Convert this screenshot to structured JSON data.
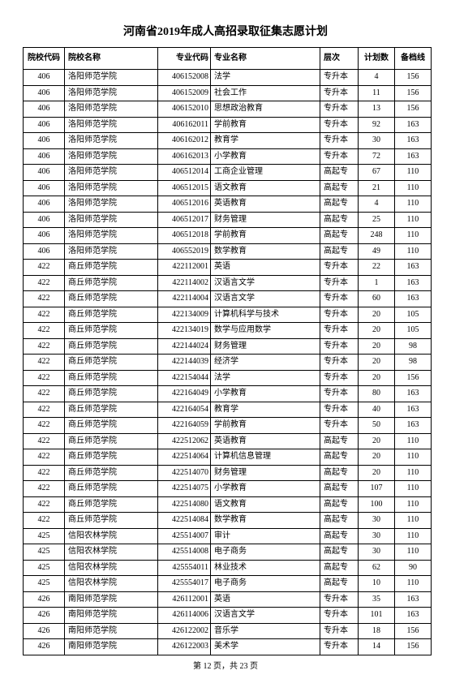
{
  "title": "河南省2019年成人高招录取征集志愿计划",
  "columns": [
    "院校代码",
    "院校名称",
    "专业代码",
    "专业名称",
    "层次",
    "计划数",
    "备档线"
  ],
  "rows": [
    [
      "406",
      "洛阳师范学院",
      "406152008",
      "法学",
      "专升本",
      "4",
      "156"
    ],
    [
      "406",
      "洛阳师范学院",
      "406152009",
      "社会工作",
      "专升本",
      "11",
      "156"
    ],
    [
      "406",
      "洛阳师范学院",
      "406152010",
      "思想政治教育",
      "专升本",
      "13",
      "156"
    ],
    [
      "406",
      "洛阳师范学院",
      "406162011",
      "学前教育",
      "专升本",
      "92",
      "163"
    ],
    [
      "406",
      "洛阳师范学院",
      "406162012",
      "教育学",
      "专升本",
      "30",
      "163"
    ],
    [
      "406",
      "洛阳师范学院",
      "406162013",
      "小学教育",
      "专升本",
      "72",
      "163"
    ],
    [
      "406",
      "洛阳师范学院",
      "406512014",
      "工商企业管理",
      "高起专",
      "67",
      "110"
    ],
    [
      "406",
      "洛阳师范学院",
      "406512015",
      "语文教育",
      "高起专",
      "21",
      "110"
    ],
    [
      "406",
      "洛阳师范学院",
      "406512016",
      "英语教育",
      "高起专",
      "4",
      "110"
    ],
    [
      "406",
      "洛阳师范学院",
      "406512017",
      "财务管理",
      "高起专",
      "25",
      "110"
    ],
    [
      "406",
      "洛阳师范学院",
      "406512018",
      "学前教育",
      "高起专",
      "248",
      "110"
    ],
    [
      "406",
      "洛阳师范学院",
      "406552019",
      "数学教育",
      "高起专",
      "49",
      "110"
    ],
    [
      "422",
      "商丘师范学院",
      "422112001",
      "英语",
      "专升本",
      "22",
      "163"
    ],
    [
      "422",
      "商丘师范学院",
      "422114002",
      "汉语言文学",
      "专升本",
      "1",
      "163"
    ],
    [
      "422",
      "商丘师范学院",
      "422114004",
      "汉语言文学",
      "专升本",
      "60",
      "163"
    ],
    [
      "422",
      "商丘师范学院",
      "422134009",
      "计算机科学与技术",
      "专升本",
      "20",
      "105"
    ],
    [
      "422",
      "商丘师范学院",
      "422134019",
      "数学与应用数学",
      "专升本",
      "20",
      "105"
    ],
    [
      "422",
      "商丘师范学院",
      "422144024",
      "财务管理",
      "专升本",
      "20",
      "98"
    ],
    [
      "422",
      "商丘师范学院",
      "422144039",
      "经济学",
      "专升本",
      "20",
      "98"
    ],
    [
      "422",
      "商丘师范学院",
      "422154044",
      "法学",
      "专升本",
      "20",
      "156"
    ],
    [
      "422",
      "商丘师范学院",
      "422164049",
      "小学教育",
      "专升本",
      "80",
      "163"
    ],
    [
      "422",
      "商丘师范学院",
      "422164054",
      "教育学",
      "专升本",
      "40",
      "163"
    ],
    [
      "422",
      "商丘师范学院",
      "422164059",
      "学前教育",
      "专升本",
      "50",
      "163"
    ],
    [
      "422",
      "商丘师范学院",
      "422512062",
      "英语教育",
      "高起专",
      "20",
      "110"
    ],
    [
      "422",
      "商丘师范学院",
      "422514064",
      "计算机信息管理",
      "高起专",
      "20",
      "110"
    ],
    [
      "422",
      "商丘师范学院",
      "422514070",
      "财务管理",
      "高起专",
      "20",
      "110"
    ],
    [
      "422",
      "商丘师范学院",
      "422514075",
      "小学教育",
      "高起专",
      "107",
      "110"
    ],
    [
      "422",
      "商丘师范学院",
      "422514080",
      "语文教育",
      "高起专",
      "100",
      "110"
    ],
    [
      "422",
      "商丘师范学院",
      "422514084",
      "数学教育",
      "高起专",
      "30",
      "110"
    ],
    [
      "425",
      "信阳农林学院",
      "425514007",
      "审计",
      "高起专",
      "30",
      "110"
    ],
    [
      "425",
      "信阳农林学院",
      "425514008",
      "电子商务",
      "高起专",
      "30",
      "110"
    ],
    [
      "425",
      "信阳农林学院",
      "425554011",
      "林业技术",
      "高起专",
      "62",
      "90"
    ],
    [
      "425",
      "信阳农林学院",
      "425554017",
      "电子商务",
      "高起专",
      "10",
      "110"
    ],
    [
      "426",
      "南阳师范学院",
      "426112001",
      "英语",
      "专升本",
      "35",
      "163"
    ],
    [
      "426",
      "南阳师范学院",
      "426114006",
      "汉语言文学",
      "专升本",
      "101",
      "163"
    ],
    [
      "426",
      "南阳师范学院",
      "426122002",
      "音乐学",
      "专升本",
      "18",
      "156"
    ],
    [
      "426",
      "南阳师范学院",
      "426122003",
      "美术学",
      "专升本",
      "14",
      "156"
    ]
  ],
  "footer": "第 12 页，共 23 页"
}
